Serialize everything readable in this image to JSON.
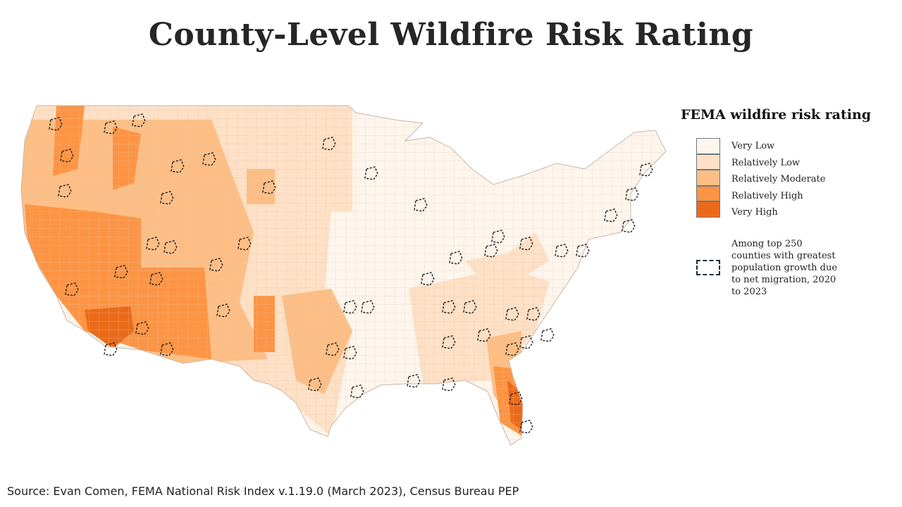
{
  "title": "County-Level Wildfire Risk Rating",
  "legend": {
    "title": "FEMA wildfire risk rating",
    "categories": [
      {
        "label": "Very Low",
        "color": "#fef5ec"
      },
      {
        "label": "Relatively Low",
        "color": "#fde0c5"
      },
      {
        "label": "Relatively Moderate",
        "color": "#fdbe85"
      },
      {
        "label": "Relatively High",
        "color": "#fd9444"
      },
      {
        "label": "Very High",
        "color": "#eb6a18"
      }
    ],
    "migration_label": "Among top 250 counties with greatest population growth due to net migration, 2020 to 2023"
  },
  "source": "Source: Evan Comen, FEMA National Risk Index v.1.19.0 (March 2023), Census Bureau PEP"
}
